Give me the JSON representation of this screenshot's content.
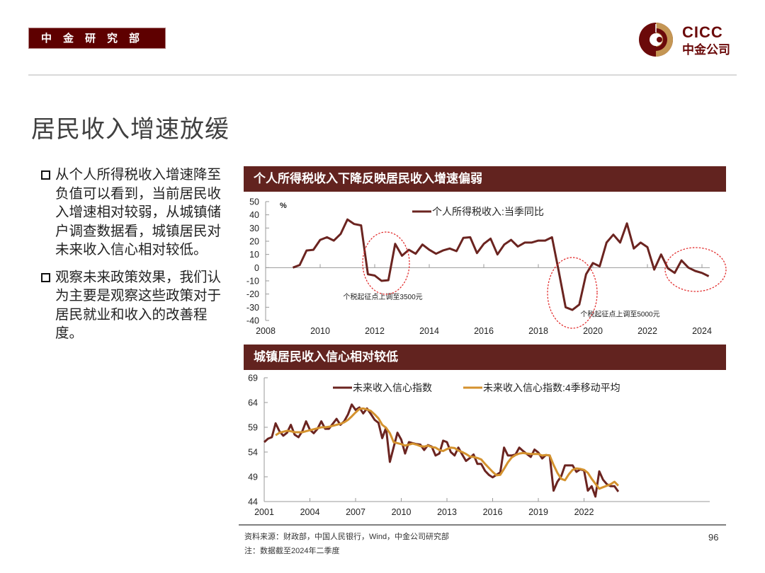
{
  "header": {
    "department": "中金研究部",
    "logo": {
      "en": "CICC",
      "cn": "中金公司",
      "icon": "cicc-ring-logo-icon"
    }
  },
  "page_title": "居民收入增速放缓",
  "bullets": [
    {
      "icon": "hollow-square-bullet-icon",
      "text": "从个人所得税收入增速降至负值可以看到，当前居民收入增速相对较弱，从城镇储户调查数据看，城镇居民对未来收入信心相对较低。"
    },
    {
      "icon": "hollow-square-bullet-icon",
      "text": "观察未来政策效果，我们认为主要是观察这些政策对于居民就业和收入的改善程度。"
    }
  ],
  "colors": {
    "brand": "#5e0000",
    "panel_header": "#62231f",
    "series_main": "#6b2420",
    "series_ma": "#d4922e",
    "annotation_circle": "#e02020",
    "axis": "#a0a0a0"
  },
  "chart_data": [
    {
      "type": "line",
      "title": "个人所得税收入下降反映居民收入增速偏弱",
      "ylabel": "%",
      "xlabel": "",
      "ylim": [
        -40,
        50
      ],
      "yticks": [
        50,
        40,
        30,
        20,
        10,
        0,
        -10,
        -20,
        -30,
        -40
      ],
      "xlim": [
        2008,
        2024.4
      ],
      "xticks": [
        "2008",
        "2010",
        "2012",
        "2014",
        "2016",
        "2018",
        "2020",
        "2022",
        "2024"
      ],
      "grid": false,
      "legend_position": "top-center",
      "series": [
        {
          "name": "个人所得税收入:当季同比",
          "color": "#6b2420",
          "x": [
            2009.0,
            2009.25,
            2009.5,
            2009.75,
            2010.0,
            2010.25,
            2010.5,
            2010.75,
            2011.0,
            2011.25,
            2011.5,
            2011.75,
            2012.0,
            2012.25,
            2012.5,
            2012.75,
            2013.0,
            2013.25,
            2013.5,
            2013.75,
            2014.0,
            2014.25,
            2014.5,
            2014.75,
            2015.0,
            2015.25,
            2015.5,
            2015.75,
            2016.0,
            2016.25,
            2016.5,
            2016.75,
            2017.0,
            2017.25,
            2017.5,
            2017.75,
            2018.0,
            2018.25,
            2018.5,
            2018.75,
            2019.0,
            2019.25,
            2019.5,
            2019.75,
            2020.0,
            2020.25,
            2020.5,
            2020.75,
            2021.0,
            2021.25,
            2021.5,
            2021.75,
            2022.0,
            2022.25,
            2022.5,
            2022.75,
            2023.0,
            2023.25,
            2023.5,
            2023.75,
            2024.0,
            2024.25
          ],
          "values": [
            0,
            2,
            13,
            13.5,
            21,
            23,
            20.5,
            25.5,
            36.5,
            33,
            32,
            -5,
            -6,
            -10,
            -9.5,
            18,
            9,
            13.5,
            10.5,
            17.5,
            13.5,
            10.5,
            13,
            14.5,
            12.5,
            22.5,
            23,
            11,
            18,
            22,
            10,
            17.5,
            21,
            16,
            19,
            19,
            20.5,
            20.5,
            23,
            -3,
            -30,
            -32,
            -28,
            -5,
            3.5,
            1,
            19,
            25,
            19,
            33.5,
            14.5,
            19,
            15.5,
            -1.5,
            10,
            -0.5,
            -4,
            5.5,
            0,
            -2.5,
            -4,
            -6.5
          ]
        }
      ],
      "annotations": [
        {
          "text": "个税起征点上调至3500元",
          "x": 2012.3,
          "y": -24
        },
        {
          "text": "个税起征点上调至5000元",
          "x": 2021.0,
          "y": -37
        }
      ]
    },
    {
      "type": "line",
      "title": "城镇居民收入信心相对较低",
      "ylabel": "",
      "xlabel": "",
      "ylim": [
        44,
        69
      ],
      "yticks": [
        69,
        64,
        59,
        54,
        49,
        44
      ],
      "xlim": [
        2001,
        2024.4
      ],
      "xticks": [
        "2001",
        "2004",
        "2007",
        "2010",
        "2013",
        "2016",
        "2019",
        "2022"
      ],
      "grid": false,
      "legend_position": "top-center",
      "series": [
        {
          "name": "未来收入信心指数",
          "color": "#6b2420",
          "x": [
            2001.0,
            2001.25,
            2001.5,
            2001.75,
            2002.0,
            2002.25,
            2002.5,
            2002.75,
            2003.0,
            2003.25,
            2003.5,
            2003.75,
            2004.0,
            2004.25,
            2004.5,
            2004.75,
            2005.0,
            2005.25,
            2005.5,
            2005.75,
            2006.0,
            2006.25,
            2006.5,
            2006.75,
            2007.0,
            2007.25,
            2007.5,
            2007.75,
            2008.0,
            2008.25,
            2008.5,
            2008.75,
            2009.0,
            2009.25,
            2009.5,
            2009.75,
            2010.0,
            2010.25,
            2010.5,
            2010.75,
            2011.0,
            2011.25,
            2011.5,
            2011.75,
            2012.0,
            2012.25,
            2012.5,
            2012.75,
            2013.0,
            2013.25,
            2013.5,
            2013.75,
            2014.0,
            2014.25,
            2014.5,
            2014.75,
            2015.0,
            2015.25,
            2015.5,
            2015.75,
            2016.0,
            2016.25,
            2016.5,
            2016.75,
            2017.0,
            2017.25,
            2017.5,
            2017.75,
            2018.0,
            2018.25,
            2018.5,
            2018.75,
            2019.0,
            2019.25,
            2019.5,
            2019.75,
            2020.0,
            2020.25,
            2020.5,
            2020.75,
            2021.0,
            2021.25,
            2021.5,
            2021.75,
            2022.0,
            2022.25,
            2022.5,
            2022.75,
            2023.0,
            2023.25,
            2023.5,
            2023.75,
            2024.0,
            2024.25
          ],
          "values": [
            56,
            56.7,
            57,
            59.8,
            58.2,
            57.3,
            57.9,
            59.5,
            57.5,
            57,
            58.2,
            60.2,
            58.5,
            57.8,
            58.7,
            60.2,
            58.7,
            58.7,
            59.7,
            60.7,
            59.5,
            60.2,
            61.6,
            63.6,
            62.5,
            63,
            61.8,
            62.8,
            61.7,
            60.5,
            59.9,
            56.8,
            58.9,
            52,
            55,
            57.9,
            56.5,
            53.7,
            56,
            55.8,
            55.6,
            55.5,
            54.4,
            55.4,
            55.1,
            53.3,
            53.7,
            56.3,
            56,
            54,
            53.3,
            54.9,
            53.5,
            52.2,
            52.8,
            53.5,
            51.6,
            51.6,
            50.2,
            49.4,
            48.9,
            49.4,
            49.9,
            54.9,
            53.3,
            53.3,
            53.5,
            54.9,
            54.2,
            53.6,
            53,
            54.5,
            53.9,
            52.7,
            53.4,
            53.3,
            46.2,
            48,
            49.1,
            51.3,
            51.3,
            51.3,
            50,
            50.5,
            50.3,
            46.2,
            47.1,
            45,
            50.1,
            48.4,
            47.5,
            47.1,
            47.1,
            46
          ]
        },
        {
          "name": "未来收入信心指数:4季移动平均",
          "color": "#d4922e",
          "x": [
            2001.75,
            2002.0,
            2002.25,
            2002.5,
            2002.75,
            2003.0,
            2003.25,
            2003.5,
            2003.75,
            2004.0,
            2004.25,
            2004.5,
            2004.75,
            2005.0,
            2005.25,
            2005.5,
            2005.75,
            2006.0,
            2006.25,
            2006.5,
            2006.75,
            2007.0,
            2007.25,
            2007.5,
            2007.75,
            2008.0,
            2008.25,
            2008.5,
            2008.75,
            2009.0,
            2009.25,
            2009.5,
            2009.75,
            2010.0,
            2010.25,
            2010.5,
            2010.75,
            2011.0,
            2011.25,
            2011.5,
            2011.75,
            2012.0,
            2012.25,
            2012.5,
            2012.75,
            2013.0,
            2013.25,
            2013.5,
            2013.75,
            2014.0,
            2014.25,
            2014.5,
            2014.75,
            2015.0,
            2015.25,
            2015.5,
            2015.75,
            2016.0,
            2016.25,
            2016.5,
            2016.75,
            2017.0,
            2017.25,
            2017.5,
            2017.75,
            2018.0,
            2018.25,
            2018.5,
            2018.75,
            2019.0,
            2019.25,
            2019.5,
            2019.75,
            2020.0,
            2020.25,
            2020.5,
            2020.75,
            2021.0,
            2021.25,
            2021.5,
            2021.75,
            2022.0,
            2022.25,
            2022.5,
            2022.75,
            2023.0,
            2023.25,
            2023.5,
            2023.75,
            2024.0,
            2024.25
          ],
          "values": [
            57.4,
            57.9,
            58.1,
            58.3,
            58.2,
            58.0,
            58.0,
            58.0,
            58.2,
            58.4,
            58.6,
            58.8,
            59.0,
            59.0,
            59.1,
            59.3,
            59.5,
            59.7,
            60.0,
            60.5,
            61.2,
            62.0,
            62.7,
            62.8,
            62.6,
            62.3,
            61.6,
            60.8,
            59.5,
            58.9,
            57.8,
            56.0,
            55.8,
            55.6,
            55.3,
            55.5,
            55.7,
            55.5,
            55.2,
            55.1,
            55.3,
            55.0,
            54.9,
            54.4,
            54.2,
            54.6,
            54.9,
            54.8,
            54.3,
            54.0,
            53.6,
            53.1,
            53.0,
            52.8,
            52.5,
            51.6,
            50.8,
            50.0,
            49.3,
            49.4,
            50.6,
            51.9,
            52.9,
            53.4,
            53.7,
            53.8,
            53.7,
            53.6,
            53.6,
            53.6,
            53.3,
            53.4,
            53.3,
            51.4,
            49.8,
            48.6,
            48.3,
            49.5,
            50.4,
            50.7,
            50.6,
            50.4,
            49.8,
            48.6,
            47.6,
            46.6,
            46.9,
            47.2,
            47.5,
            48.0,
            47.2
          ]
        }
      ]
    }
  ],
  "footer": {
    "source": "资料来源：财政部，中国人民银行，Wind，中金公司研究部",
    "note": "注：数据截至2024年二季度",
    "page_number": "96"
  }
}
